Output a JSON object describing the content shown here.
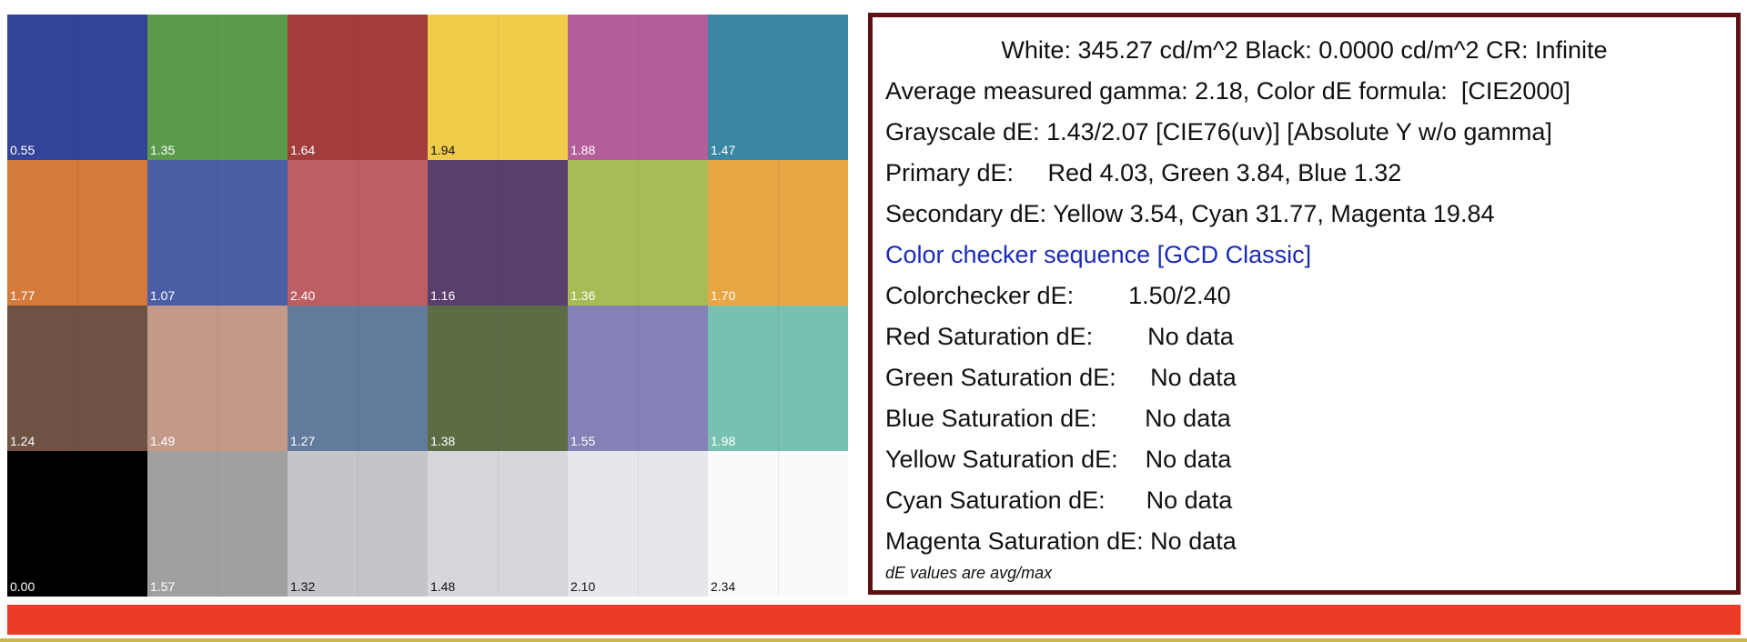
{
  "checker": {
    "patches": [
      {
        "color": "#34439a",
        "label": "0.55"
      },
      {
        "color": "#5a9a4a",
        "label": "1.35"
      },
      {
        "color": "#a33d3c",
        "label": "1.64"
      },
      {
        "color": "#f1cb4a",
        "label": "1.94",
        "dark": true
      },
      {
        "color": "#b35e98",
        "label": "1.88"
      },
      {
        "color": "#3a87a5",
        "label": "1.47"
      },
      {
        "color": "#d47b3b",
        "label": "1.77"
      },
      {
        "color": "#4a5da5",
        "label": "1.07"
      },
      {
        "color": "#bd5e63",
        "label": "2.40"
      },
      {
        "color": "#5a3e6c",
        "label": "1.16"
      },
      {
        "color": "#a6bc55",
        "label": "1.36"
      },
      {
        "color": "#e7a544",
        "label": "1.70"
      },
      {
        "color": "#6e5244",
        "label": "1.24"
      },
      {
        "color": "#c39a89",
        "label": "1.49"
      },
      {
        "color": "#627a9c",
        "label": "1.27"
      },
      {
        "color": "#5c6c45",
        "label": "1.38"
      },
      {
        "color": "#8381b5",
        "label": "1.55"
      },
      {
        "color": "#78c1b1",
        "label": "1.98"
      },
      {
        "color": "#000000",
        "label": "0.00"
      },
      {
        "color": "#a0a0a0",
        "label": "1.57"
      },
      {
        "color": "#c4c5c8",
        "label": "1.32",
        "dark": true
      },
      {
        "color": "#d6d7da",
        "label": "1.48",
        "dark": true
      },
      {
        "color": "#e6e7ea",
        "label": "2.10",
        "dark": true
      },
      {
        "color": "#f8fafc",
        "label": "2.34",
        "dark": true
      }
    ]
  },
  "info": {
    "lines": [
      "White: 345.27 cd/m^2 Black: 0.0000 cd/m^2 CR: Infinite",
      "Average measured gamma: 2.18, Color dE formula:  [CIE2000]",
      "Grayscale dE: 1.43/2.07 [CIE76(uv)] [Absolute Y w/o gamma]",
      "Primary dE:     Red 4.03, Green 3.84, Blue 1.32",
      "Secondary dE: Yellow 3.54, Cyan 31.77, Magenta 19.84",
      "Color checker sequence [GCD Classic]",
      "Colorchecker dE:        1.50/2.40",
      "Red Saturation dE:        No data",
      "Green Saturation dE:     No data",
      "Blue Saturation dE:       No data",
      "Yellow Saturation dE:    No data",
      "Cyan Saturation dE:      No data",
      "Magenta Saturation dE: No data"
    ],
    "footnote": "dE values are avg/max"
  },
  "colors": {
    "panel_border": "#5e1212",
    "link": "#1c2ab8",
    "progress_bar": "#ec3b25",
    "bottom_strip": "#c9b84e"
  }
}
